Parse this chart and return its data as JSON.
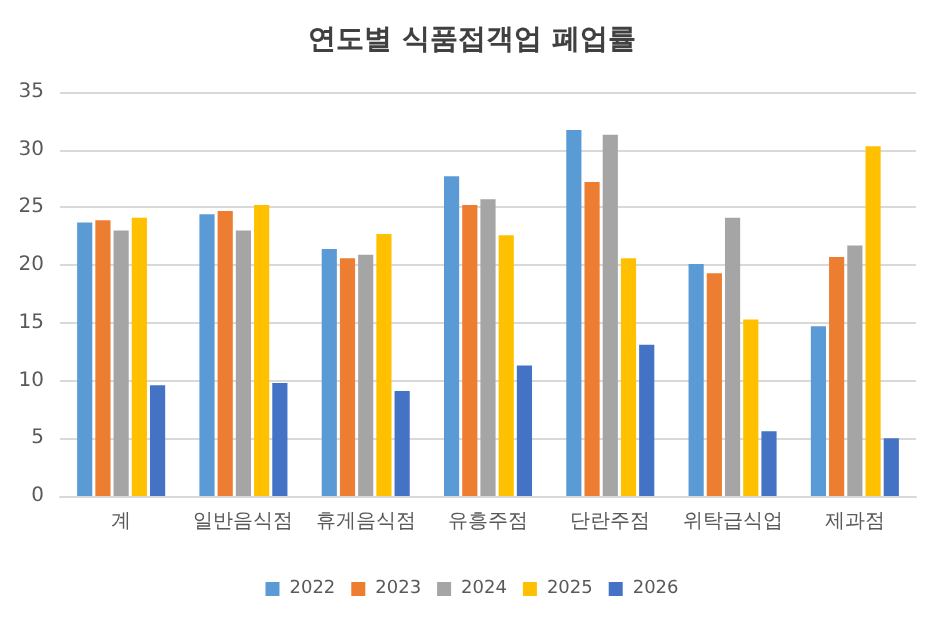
{
  "chart_data": {
    "type": "bar",
    "title": "연도별 식품접객업 폐업률",
    "categories": [
      "계",
      "일반음식점",
      "휴게음식점",
      "유흥주점",
      "단란주점",
      "위탁급식업",
      "제과점"
    ],
    "series": [
      {
        "name": "2022",
        "color": "#5b9bd5",
        "values": [
          23.7,
          24.4,
          21.4,
          27.7,
          31.7,
          20.1,
          14.7
        ]
      },
      {
        "name": "2023",
        "color": "#ed7d31",
        "values": [
          23.9,
          24.7,
          20.6,
          25.2,
          27.2,
          19.3,
          20.7
        ]
      },
      {
        "name": "2024",
        "color": "#a5a5a5",
        "values": [
          23.0,
          23.0,
          20.9,
          25.7,
          31.3,
          24.1,
          21.7
        ]
      },
      {
        "name": "2025",
        "color": "#ffc000",
        "values": [
          24.1,
          25.2,
          22.7,
          22.6,
          20.6,
          15.3,
          30.3
        ]
      },
      {
        "name": "2026",
        "color": "#4472c4",
        "values": [
          9.6,
          9.8,
          9.1,
          11.3,
          13.1,
          5.6,
          5.0
        ]
      }
    ],
    "ylim": [
      0,
      35
    ],
    "yticks": [
      0,
      5,
      10,
      15,
      20,
      25,
      30,
      35
    ],
    "grid": "y",
    "legend": "bottom"
  }
}
